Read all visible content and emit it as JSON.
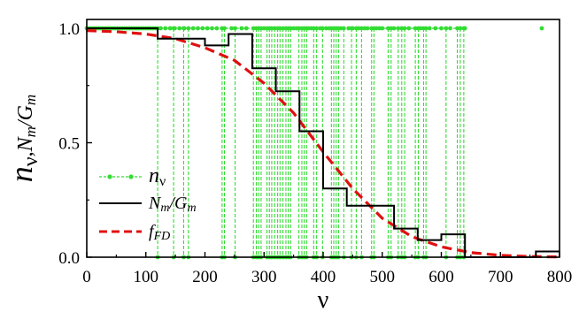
{
  "chart_data": {
    "type": "line",
    "xlabel": "ν",
    "ylabel": {
      "main": "n",
      "main_sub": "ν",
      "sep": ",",
      "second": "N",
      "second_sub": "m",
      "slash": "/",
      "third": "G",
      "third_sub": "m"
    },
    "xlim": [
      0,
      800
    ],
    "ylim": [
      0,
      1.05
    ],
    "x_ticks": [
      0,
      100,
      200,
      300,
      400,
      500,
      600,
      700,
      800
    ],
    "x_tick_labels": [
      "0",
      "100",
      "200",
      "300",
      "400",
      "500",
      "600",
      "700",
      "800"
    ],
    "y_ticks": [
      0.0,
      0.5,
      1.0
    ],
    "y_tick_labels": [
      "0.0",
      "0.5",
      "1.0"
    ],
    "grid": false,
    "legend_position": "bottom-left",
    "colors": {
      "n_v": "#33dd33",
      "N_over_G": "#000000",
      "f_FD": "#e01010"
    },
    "series": [
      {
        "name": "n_ν",
        "legend": {
          "main": "n",
          "sub": "ν"
        },
        "style": "dashed-dots",
        "occupied_levels": [
          0,
          4,
          8,
          12,
          16,
          20,
          24,
          28,
          32,
          36,
          40,
          44,
          48,
          52,
          56,
          60,
          64,
          68,
          72,
          76,
          80,
          84,
          88,
          92,
          96,
          100,
          104,
          108,
          112,
          116,
          125,
          133,
          141,
          149,
          157,
          165,
          180,
          188,
          196,
          204,
          212,
          220,
          245,
          262,
          270,
          300,
          350,
          355,
          375,
          380,
          395,
          405,
          410,
          430,
          443,
          450,
          460,
          470,
          475,
          490,
          495,
          500,
          520,
          545,
          565,
          580,
          590,
          600,
          615,
          640,
          770
        ],
        "empty_levels": [
          120,
          147,
          164,
          172,
          229,
          233,
          251,
          282,
          287,
          291,
          295,
          305,
          309,
          313,
          318,
          323,
          327,
          332,
          337,
          341,
          345,
          359,
          364,
          368,
          372,
          384,
          389,
          399,
          414,
          418,
          422,
          426,
          435,
          448,
          456,
          465,
          482,
          486,
          510,
          515,
          527,
          533,
          538,
          556,
          561,
          570,
          574,
          608,
          627,
          632,
          638
        ]
      },
      {
        "name": "N_m/G_m",
        "legend": {
          "main": "N",
          "sub": "m",
          "slash": "/",
          "main2": "G",
          "sub2": "m"
        },
        "style": "step",
        "x": [
          0,
          120,
          200,
          240,
          280,
          320,
          360,
          400,
          440,
          480,
          520,
          560,
          600,
          640,
          680,
          720,
          760,
          800
        ],
        "values": [
          1.0,
          0.955,
          0.925,
          0.975,
          0.825,
          0.725,
          0.55,
          0.3,
          0.225,
          0.225,
          0.125,
          0.075,
          0.1,
          0.0,
          0.0,
          0.0,
          0.025,
          0.025
        ]
      },
      {
        "name": "f_FD",
        "legend": {
          "main": "f",
          "sub": "FD"
        },
        "style": "dashed",
        "x": [
          0,
          50,
          100,
          150,
          200,
          250,
          300,
          350,
          400,
          450,
          500,
          550,
          600,
          650,
          700,
          750,
          800
        ],
        "values": [
          0.99,
          0.985,
          0.975,
          0.955,
          0.915,
          0.86,
          0.76,
          0.63,
          0.46,
          0.3,
          0.17,
          0.09,
          0.045,
          0.02,
          0.008,
          0.003,
          0.001
        ]
      }
    ]
  }
}
